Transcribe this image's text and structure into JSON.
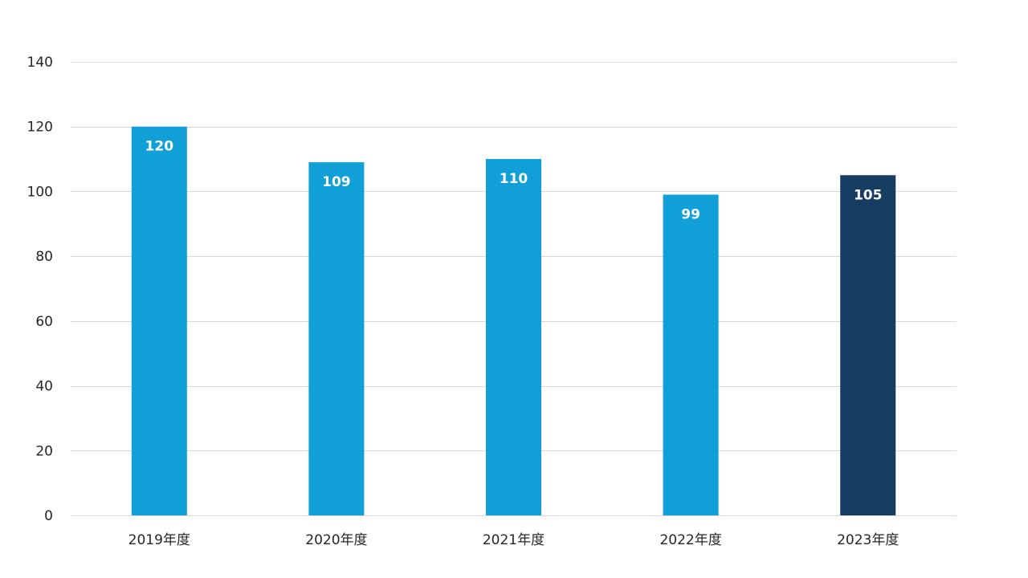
{
  "chart_data": {
    "type": "bar",
    "title": "",
    "xlabel": "",
    "ylabel": "",
    "categories": [
      "2019年度",
      "2020年度",
      "2021年度",
      "2022年度",
      "2023年度"
    ],
    "values": [
      120,
      109,
      110,
      99,
      105
    ],
    "data_labels": [
      "120",
      "109",
      "110",
      "99",
      "105"
    ],
    "ylim": [
      0,
      140
    ],
    "yticks": [
      0,
      20,
      40,
      60,
      80,
      100,
      120,
      140
    ],
    "ytick_labels": [
      "0",
      "20",
      "40",
      "60",
      "80",
      "100",
      "120",
      "140"
    ],
    "grid": true,
    "legend": "none",
    "colors": {
      "bar": "#119fd7",
      "highlight_bar": "#173d63",
      "highlight_index": 4,
      "gridline": "#d9d9d9",
      "label_text": "#ffffff",
      "axis_text": "#262626"
    }
  }
}
